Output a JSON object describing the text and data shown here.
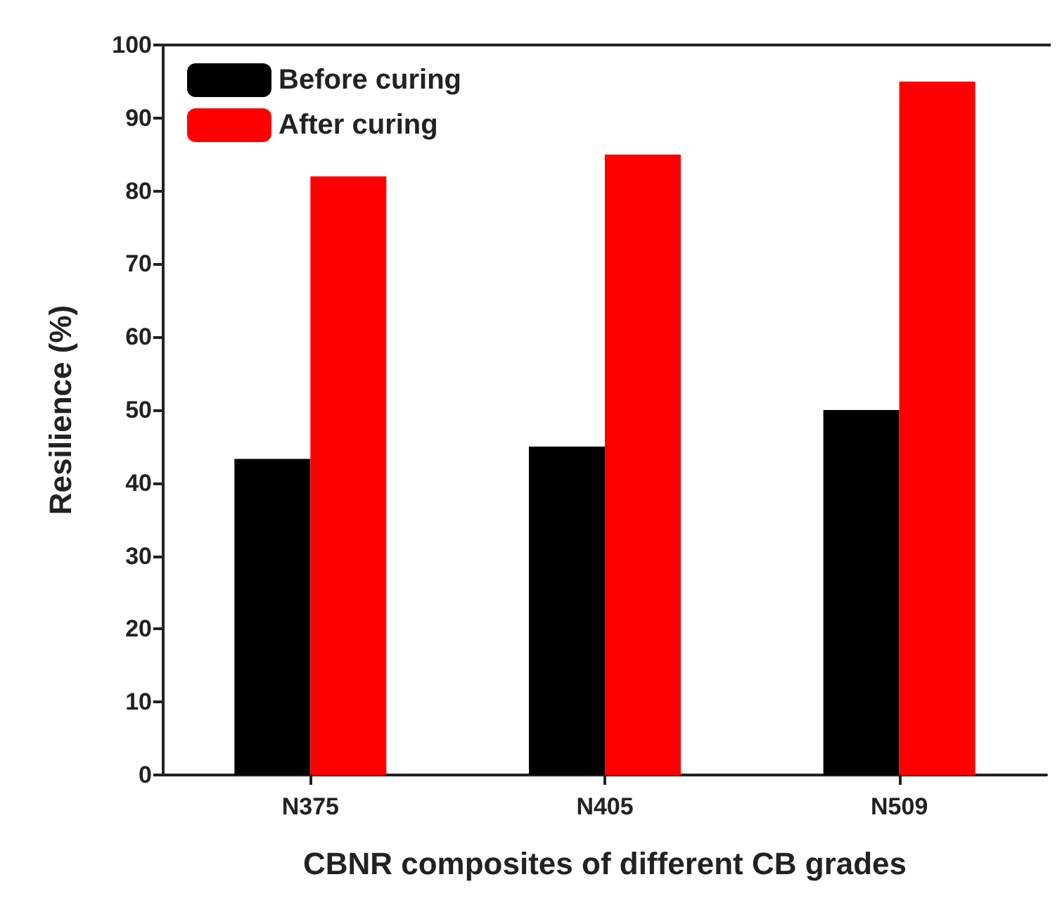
{
  "chart_data": {
    "type": "bar",
    "xlabel": "CBNR composites of different CB grades",
    "ylabel": "Resilience (%)",
    "categories": [
      "N375",
      "N405",
      "N509"
    ],
    "series": [
      {
        "name": "Before curing",
        "color": "#000000",
        "values": [
          43.3,
          45,
          50
        ]
      },
      {
        "name": "After curing",
        "color": "#ff0000",
        "values": [
          82,
          85,
          95
        ]
      }
    ],
    "ylim": [
      0,
      100
    ],
    "yticks": [
      0,
      10,
      20,
      30,
      40,
      50,
      60,
      70,
      80,
      90,
      100
    ],
    "grid": false,
    "legend": "top left"
  }
}
